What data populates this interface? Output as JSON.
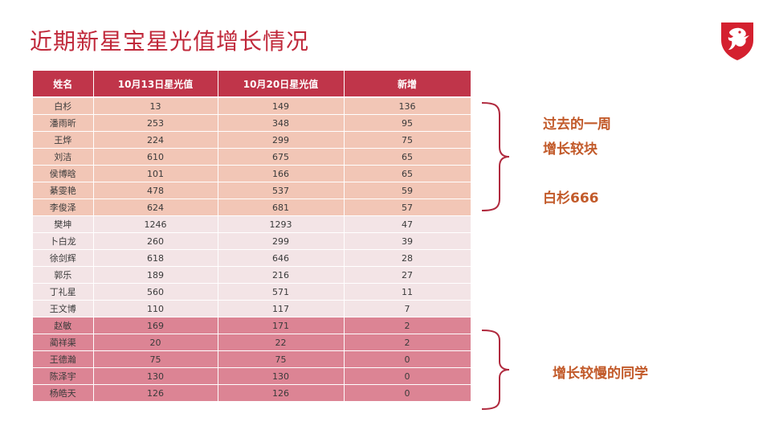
{
  "title": "近期新星宝星光值增长情况",
  "logo_icon": "red-dragon-shield-logo",
  "colors": {
    "title": "#c0283a",
    "header": "#c0354a",
    "group_fast": "#f2c6b6",
    "group_mid": "#f3e4e6",
    "group_slow": "#dc8494",
    "note": "#c25a2a",
    "brace": "#b02a3e"
  },
  "table": {
    "headers": [
      "姓名",
      "10月13日星光值",
      "10月20日星光值",
      "新增"
    ],
    "rows": [
      [
        "白杉",
        "13",
        "149",
        "136"
      ],
      [
        "潘雨昕",
        "253",
        "348",
        "95"
      ],
      [
        "王烨",
        "224",
        "299",
        "75"
      ],
      [
        "刘洁",
        "610",
        "675",
        "65"
      ],
      [
        "侯博晗",
        "101",
        "166",
        "65"
      ],
      [
        "綦雯艳",
        "478",
        "537",
        "59"
      ],
      [
        "李俊泽",
        "624",
        "681",
        "57"
      ],
      [
        "樊坤",
        "1246",
        "1293",
        "47"
      ],
      [
        "卜白龙",
        "260",
        "299",
        "39"
      ],
      [
        "徐剑辉",
        "618",
        "646",
        "28"
      ],
      [
        "郭乐",
        "189",
        "216",
        "27"
      ],
      [
        "丁礼星",
        "560",
        "571",
        "11"
      ],
      [
        "王文博",
        "110",
        "117",
        "7"
      ],
      [
        "赵敏",
        "169",
        "171",
        "2"
      ],
      [
        "蔺祥渠",
        "20",
        "22",
        "2"
      ],
      [
        "王德瀚",
        "75",
        "75",
        "0"
      ],
      [
        "陈泽宇",
        "130",
        "130",
        "0"
      ],
      [
        "杨皓天",
        "126",
        "126",
        "0"
      ]
    ]
  },
  "notes": {
    "fast_line1": "过去的一周",
    "fast_line2": "增长较块",
    "fast_line3": "白杉666",
    "slow": "增长较慢的同学"
  }
}
